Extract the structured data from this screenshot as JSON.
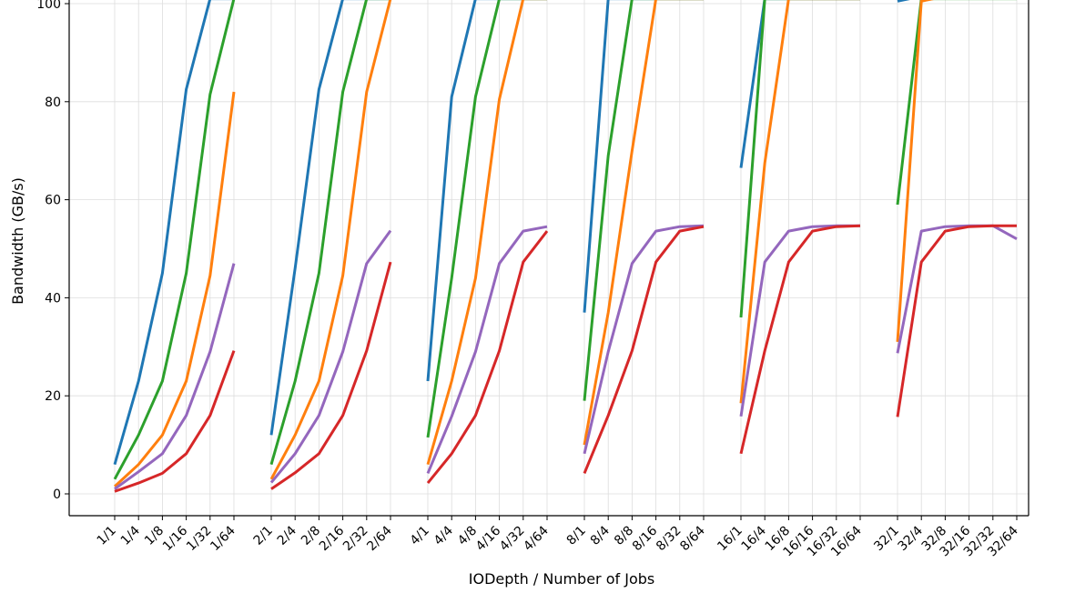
{
  "chart_data": {
    "type": "line",
    "xlabel": "IODepth / Number of Jobs",
    "ylabel": "Bandwidth (GB/s)",
    "ylim": [
      -4.5,
      100
    ],
    "yticks": [
      0,
      20,
      40,
      60,
      80,
      100
    ],
    "grid": true,
    "groups": [
      [
        "1/1",
        "1/4",
        "1/8",
        "1/16",
        "1/32",
        "1/64"
      ],
      [
        "2/1",
        "2/4",
        "2/8",
        "2/16",
        "2/32",
        "2/64"
      ],
      [
        "4/1",
        "4/4",
        "4/8",
        "4/16",
        "4/32",
        "4/64"
      ],
      [
        "8/1",
        "8/4",
        "8/8",
        "8/16",
        "8/32",
        "8/64"
      ],
      [
        "16/1",
        "16/4",
        "16/8",
        "16/16",
        "16/32",
        "16/64"
      ],
      [
        "32/1",
        "32/4",
        "32/8",
        "32/16",
        "32/32",
        "32/64"
      ]
    ],
    "series": [
      {
        "color": "#1f77b4",
        "groups": [
          [
            6,
            23,
            45,
            82.5,
            101,
            101
          ],
          [
            12,
            46,
            82.5,
            101,
            101,
            101
          ],
          [
            23,
            81,
            101,
            101,
            101,
            101
          ],
          [
            37,
            101,
            101,
            101,
            101,
            101
          ],
          [
            66.5,
            101,
            101,
            101,
            101,
            101
          ],
          [
            100.5,
            101.5,
            101.5,
            101.5,
            101.5,
            101.5
          ]
        ]
      },
      {
        "color": "#2ca02c",
        "groups": [
          [
            3,
            12,
            23,
            45,
            81.5,
            101
          ],
          [
            6,
            23,
            45,
            82,
            101,
            101
          ],
          [
            11.5,
            44,
            81,
            101,
            101,
            101
          ],
          [
            19,
            69,
            101,
            101,
            101,
            101
          ],
          [
            36,
            101,
            101,
            101,
            101,
            101
          ],
          [
            59,
            101,
            101,
            101,
            101,
            101
          ]
        ]
      },
      {
        "color": "#ff7f0e",
        "groups": [
          [
            1.5,
            6,
            12,
            23,
            44.5,
            82
          ],
          [
            3,
            12,
            23,
            44.5,
            82,
            101
          ],
          [
            6,
            23,
            44,
            80.5,
            101,
            101
          ],
          [
            10,
            37,
            70,
            101,
            101,
            101
          ],
          [
            18.5,
            67.5,
            101,
            101,
            101,
            101
          ],
          [
            31,
            100.5,
            101.5,
            101.5,
            101.5,
            101.5
          ]
        ]
      },
      {
        "color": "#9467bd",
        "groups": [
          [
            1,
            4.5,
            8.2,
            16,
            29,
            47
          ],
          [
            2.3,
            8.2,
            16,
            29,
            47,
            53.7
          ],
          [
            4.2,
            15.8,
            29,
            47,
            53.6,
            54.5
          ],
          [
            8.2,
            29,
            47,
            53.6,
            54.5,
            54.7
          ],
          [
            15.8,
            47.3,
            53.6,
            54.5,
            54.7,
            54.7
          ],
          [
            28.7,
            53.6,
            54.5,
            54.7,
            54.7,
            52
          ]
        ]
      },
      {
        "color": "#d62728",
        "groups": [
          [
            0.5,
            2.2,
            4.2,
            8.2,
            16,
            29.2
          ],
          [
            1,
            4.3,
            8.2,
            16,
            29.2,
            47.3
          ],
          [
            2.2,
            8.2,
            16,
            29.2,
            47.3,
            53.6
          ],
          [
            4.2,
            16,
            29.2,
            47.3,
            53.6,
            54.5
          ],
          [
            8.2,
            29.2,
            47.3,
            53.6,
            54.5,
            54.7
          ],
          [
            15.7,
            47.3,
            53.6,
            54.5,
            54.7,
            54.7
          ]
        ]
      }
    ]
  }
}
